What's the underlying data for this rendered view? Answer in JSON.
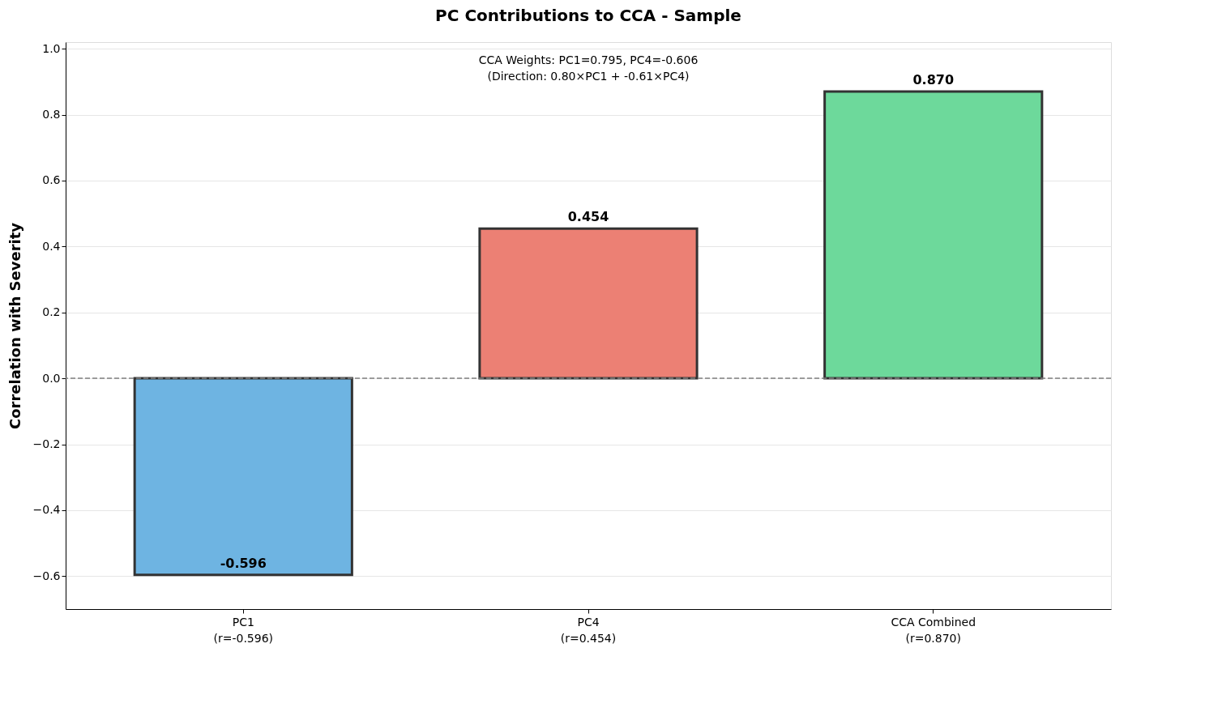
{
  "chart_data": {
    "type": "bar",
    "title": "PC Contributions to CCA - Sample",
    "ylabel": "Correlation with Severity",
    "categories": [
      "PC1\n(r=-0.596)",
      "PC4\n(r=0.454)",
      "CCA Combined\n(r=0.870)"
    ],
    "values": [
      -0.596,
      0.454,
      0.87
    ],
    "colors": [
      "#6eb4e2",
      "#ec8074",
      "#6dd99b"
    ],
    "data_labels": true,
    "value_labels": [
      "-0.596",
      "0.454",
      "0.870"
    ],
    "ylim": [
      -0.7,
      1.02
    ],
    "yticks": [
      {
        "value": -0.6,
        "label": "−0.6"
      },
      {
        "value": -0.4,
        "label": "−0.4"
      },
      {
        "value": -0.2,
        "label": "−0.2"
      },
      {
        "value": 0.0,
        "label": "0.0"
      },
      {
        "value": 0.2,
        "label": "0.2"
      },
      {
        "value": 0.4,
        "label": "0.4"
      },
      {
        "value": 0.6,
        "label": "0.6"
      },
      {
        "value": 0.8,
        "label": "0.8"
      },
      {
        "value": 1.0,
        "label": "1.0"
      }
    ],
    "grid": "y",
    "ref_lines": [
      {
        "axis": "y",
        "value": 0.0,
        "label": null,
        "color": "#808080",
        "line_style": "dashed"
      }
    ],
    "annotations": [
      "CCA Weights: PC1=0.795, PC4=-0.606\n(Direction: 0.80×PC1 + -0.61×PC4)"
    ]
  }
}
